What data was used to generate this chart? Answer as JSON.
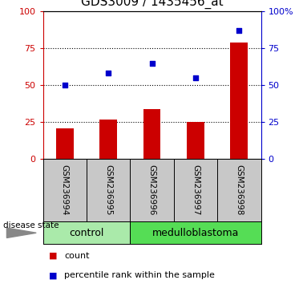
{
  "title": "GDS3009 / 1435456_at",
  "samples": [
    "GSM236994",
    "GSM236995",
    "GSM236996",
    "GSM236997",
    "GSM236998"
  ],
  "counts": [
    21,
    27,
    34,
    25,
    79
  ],
  "percentiles": [
    50,
    58,
    65,
    55,
    87
  ],
  "groups": [
    {
      "label": "control",
      "indices": [
        0,
        1
      ]
    },
    {
      "label": "medulloblastoma",
      "indices": [
        2,
        3,
        4
      ]
    }
  ],
  "group_colors": [
    "#aaeaaa",
    "#55dd55"
  ],
  "bar_color": "#cc0000",
  "dot_color": "#0000cc",
  "left_axis_color": "#cc0000",
  "right_axis_color": "#0000cc",
  "ylim": [
    0,
    100
  ],
  "yticks": [
    0,
    25,
    50,
    75,
    100
  ],
  "hline_values": [
    25,
    50,
    75
  ],
  "label_area_color": "#c8c8c8",
  "title_fontsize": 11,
  "legend_count_label": "count",
  "legend_percentile_label": "percentile rank within the sample",
  "disease_state_label": "disease state",
  "right_ytick_labels": [
    "0",
    "25",
    "50",
    "75",
    "100%"
  ]
}
